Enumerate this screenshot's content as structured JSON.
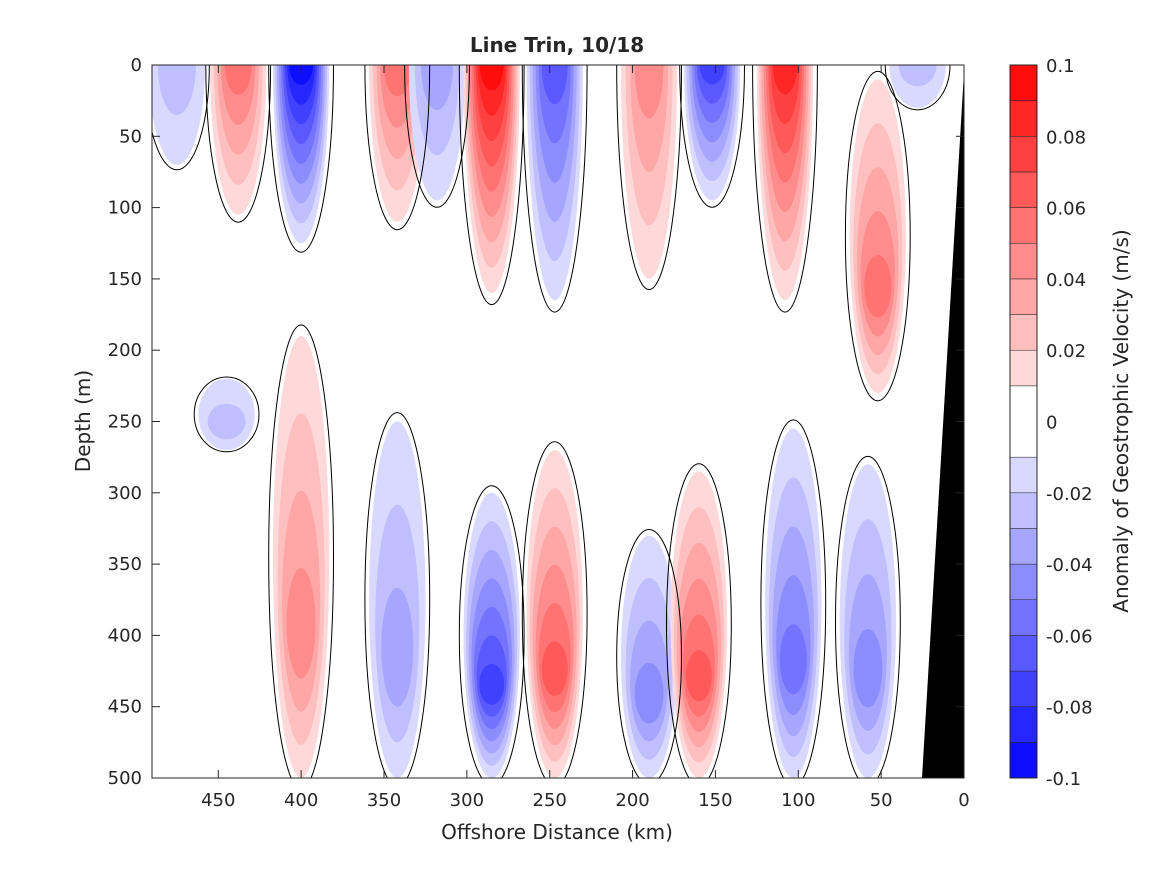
{
  "chart_data": {
    "type": "heatmap",
    "title": "Line Trin, 10/18",
    "xlabel": "Offshore Distance (km)",
    "ylabel": "Depth (m)",
    "xlim": [
      490,
      0
    ],
    "ylim": [
      0,
      500
    ],
    "x_ticks": [
      450,
      400,
      350,
      300,
      250,
      200,
      150,
      100,
      50,
      0
    ],
    "y_ticks": [
      0,
      50,
      100,
      150,
      200,
      250,
      300,
      350,
      400,
      450,
      500
    ],
    "colorbar": {
      "label": "Anomaly of Geostrophic Velocity (m/s)",
      "range": [
        -0.1,
        0.1
      ],
      "tick_labels": [
        "0.1",
        "0.08",
        "0.06",
        "0.04",
        "0.02",
        "0",
        "-0.02",
        "-0.04",
        "-0.06",
        "-0.08",
        "-0.1"
      ],
      "tick_values": [
        0.1,
        0.08,
        0.06,
        0.04,
        0.02,
        0,
        -0.02,
        -0.04,
        -0.06,
        -0.08,
        -0.1
      ],
      "levels": [
        -0.1,
        -0.09,
        -0.08,
        -0.07,
        -0.06,
        -0.05,
        -0.04,
        -0.03,
        -0.02,
        -0.01,
        0.01,
        0.02,
        0.03,
        0.04,
        0.05,
        0.06,
        0.07,
        0.08,
        0.09,
        0.1
      ],
      "negative_color": "#0000ff",
      "positive_color": "#ff0000",
      "zero_color": "#ffffff"
    },
    "bathymetry_color": "#000000",
    "zero_contour_color": "#000000",
    "cells": [
      {
        "x": 475,
        "y_top": 0,
        "y_bottom": 70,
        "value": -0.015
      },
      {
        "x": 438,
        "y_top": 0,
        "y_bottom": 105,
        "value": 0.045
      },
      {
        "x": 445,
        "y_top": 220,
        "y_bottom": 270,
        "value": -0.015
      },
      {
        "x": 400,
        "y_top": 0,
        "y_bottom": 125,
        "value": -0.085
      },
      {
        "x": 400,
        "y_top": 190,
        "y_bottom": 500,
        "value": 0.035
      },
      {
        "x": 342,
        "y_top": 0,
        "y_bottom": 110,
        "value": 0.05
      },
      {
        "x": 342,
        "y_top": 250,
        "y_bottom": 500,
        "value": -0.025
      },
      {
        "x": 318,
        "y_top": 0,
        "y_bottom": 95,
        "value": -0.03
      },
      {
        "x": 285,
        "y_top": 0,
        "y_bottom": 160,
        "value": 0.085
      },
      {
        "x": 285,
        "y_top": 300,
        "y_bottom": 500,
        "value": -0.065
      },
      {
        "x": 247,
        "y_top": 0,
        "y_bottom": 165,
        "value": -0.055
      },
      {
        "x": 247,
        "y_top": 270,
        "y_bottom": 500,
        "value": 0.055
      },
      {
        "x": 190,
        "y_top": 0,
        "y_bottom": 150,
        "value": 0.035
      },
      {
        "x": 190,
        "y_top": 330,
        "y_bottom": 500,
        "value": -0.035
      },
      {
        "x": 152,
        "y_top": 0,
        "y_bottom": 95,
        "value": -0.065
      },
      {
        "x": 160,
        "y_top": 285,
        "y_bottom": 500,
        "value": 0.055
      },
      {
        "x": 108,
        "y_top": 0,
        "y_bottom": 165,
        "value": 0.075
      },
      {
        "x": 103,
        "y_top": 255,
        "y_bottom": 500,
        "value": -0.045
      },
      {
        "x": 52,
        "y_top": 10,
        "y_bottom": 230,
        "value": 0.045
      },
      {
        "x": 58,
        "y_top": 280,
        "y_bottom": 500,
        "value": -0.035
      },
      {
        "x": 28,
        "y_top": 0,
        "y_bottom": 30,
        "value": -0.015
      }
    ]
  }
}
